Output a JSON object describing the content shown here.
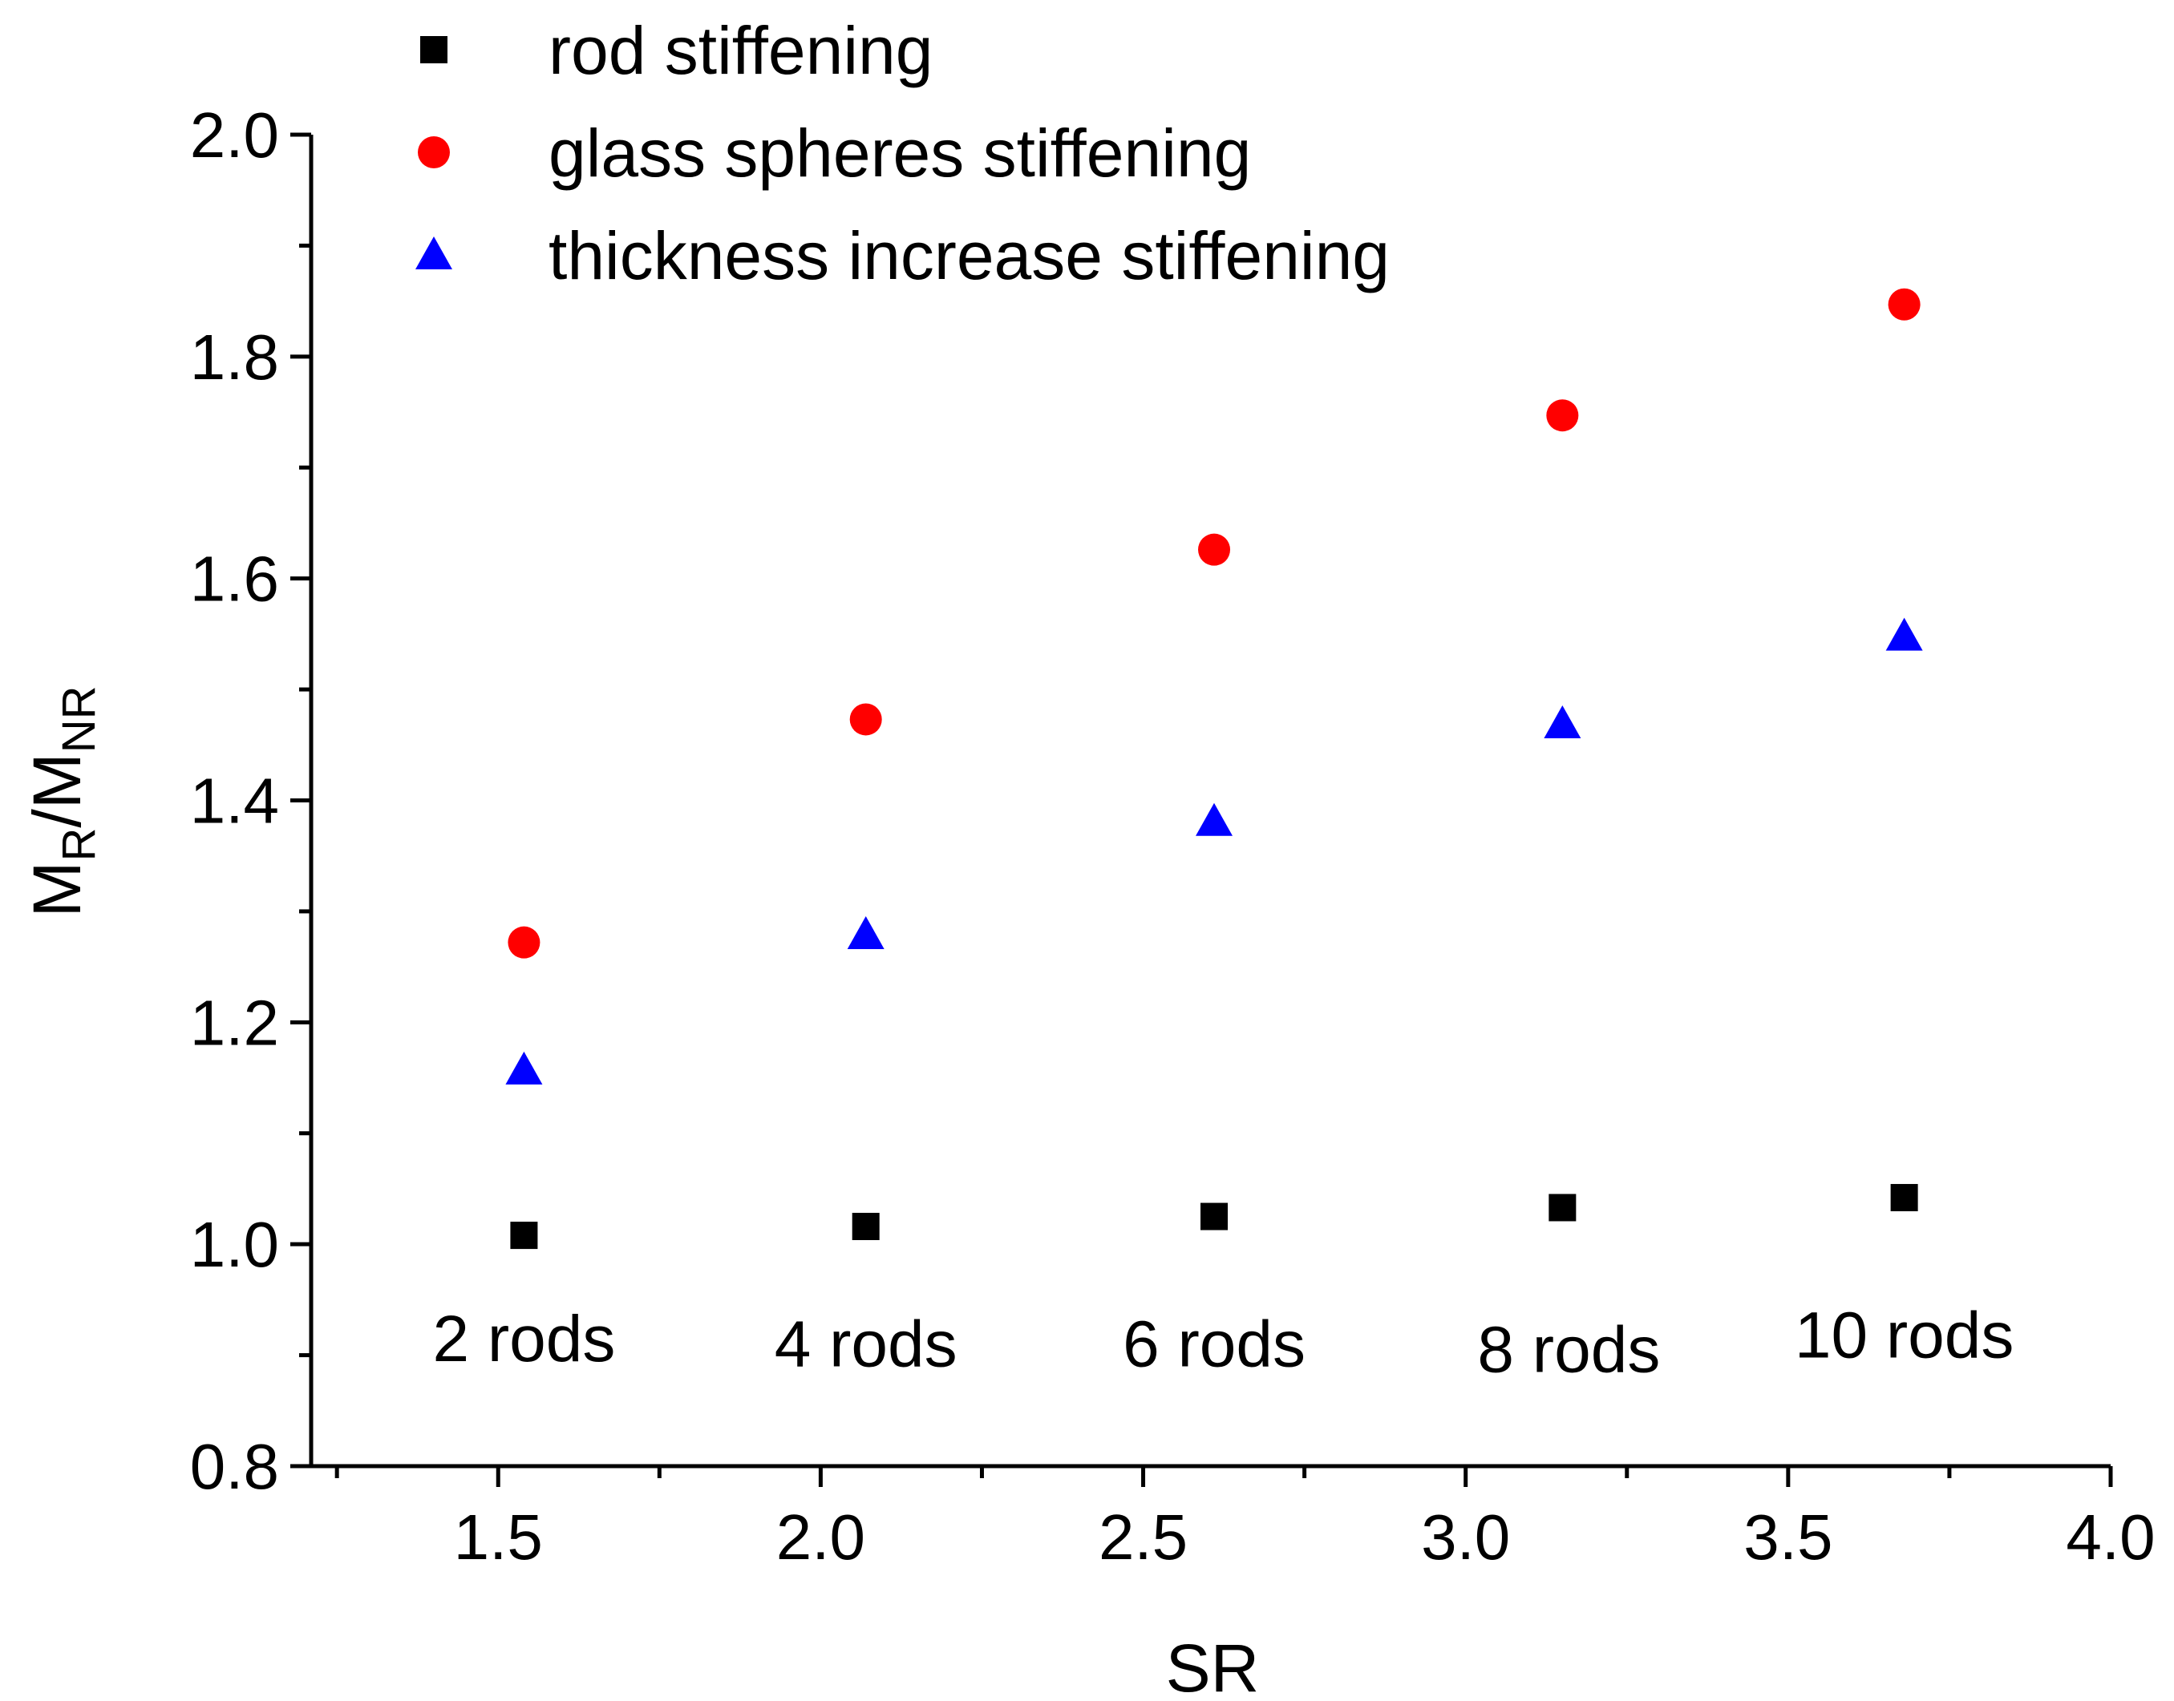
{
  "chart_data": {
    "type": "scatter",
    "title": "",
    "xlabel": "SR",
    "ylabel": {
      "base": "M",
      "sub1": "R",
      "mid": "/M",
      "sub2": "NR"
    },
    "xlim": [
      1.21,
      4.0
    ],
    "ylim": [
      0.8,
      2.0
    ],
    "x_ticks": [
      "1.5",
      "2.0",
      "2.5",
      "3.0",
      "3.5",
      "4.0"
    ],
    "x_tick_values": [
      1.5,
      2.0,
      2.5,
      3.0,
      3.5,
      4.0
    ],
    "x_minor_step": 0.25,
    "y_ticks": [
      "0.8",
      "1.0",
      "1.2",
      "1.4",
      "1.6",
      "1.8",
      "2.0"
    ],
    "y_tick_values": [
      0.8,
      1.0,
      1.2,
      1.4,
      1.6,
      1.8,
      2.0
    ],
    "y_minor_step": 0.1,
    "grid": false,
    "legend_position": "top",
    "x": [
      1.54,
      2.07,
      2.61,
      3.15,
      3.68
    ],
    "series": [
      {
        "name": "rod stiffening",
        "marker": "square",
        "color": "#000000",
        "values": [
          1.008,
          1.016,
          1.025,
          1.033,
          1.042
        ]
      },
      {
        "name": "glass spheres stiffening",
        "marker": "circle",
        "color": "#ff0000",
        "values": [
          1.272,
          1.473,
          1.626,
          1.747,
          1.847
        ]
      },
      {
        "name": "thickness increase stiffening",
        "marker": "triangle",
        "color": "#0000ff",
        "values": [
          1.157,
          1.279,
          1.381,
          1.469,
          1.548
        ]
      }
    ],
    "annotations": [
      {
        "text": "2 rods",
        "x": 1.54,
        "y": 0.915
      },
      {
        "text": "4 rods",
        "x": 2.07,
        "y": 0.91
      },
      {
        "text": "6 rods",
        "x": 2.61,
        "y": 0.91
      },
      {
        "text": "8 rods",
        "x": 3.16,
        "y": 0.905
      },
      {
        "text": "10 rods",
        "x": 3.68,
        "y": 0.918
      }
    ]
  }
}
